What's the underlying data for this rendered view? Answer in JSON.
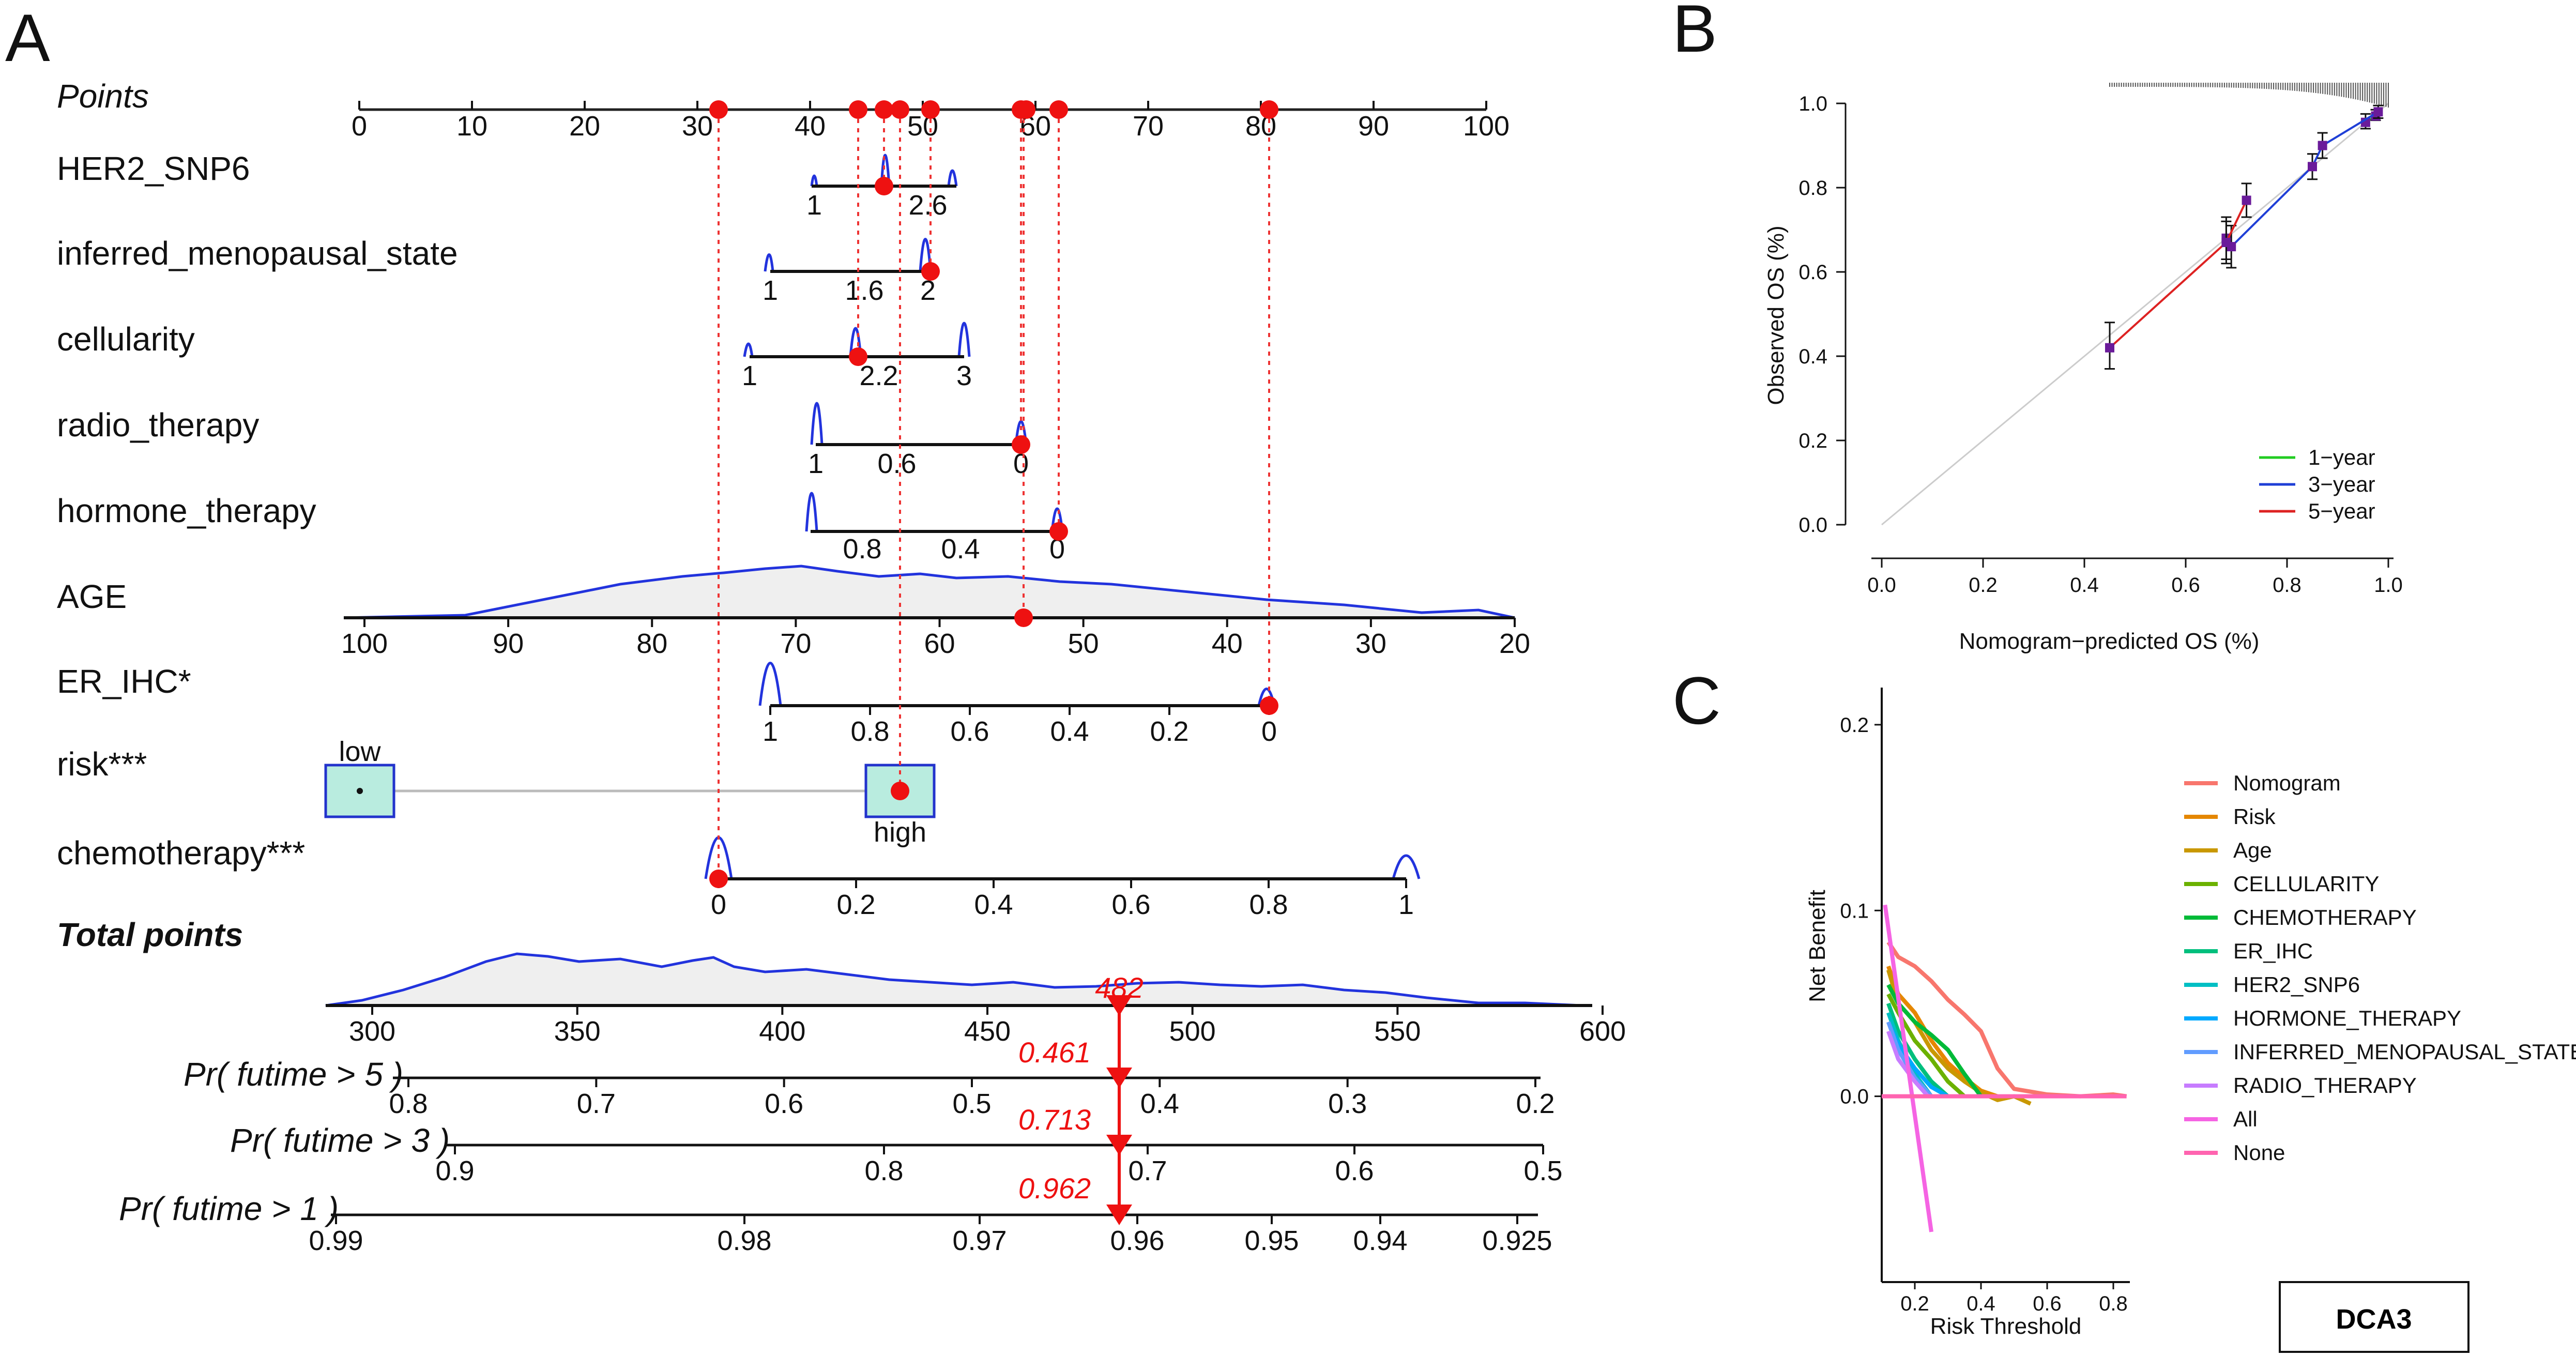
{
  "panels": {
    "a": "A",
    "b": "B",
    "c": "C"
  },
  "nomogram": {
    "points_label": "Points",
    "points_ticks": [
      "0",
      "10",
      "20",
      "30",
      "40",
      "50",
      "60",
      "70",
      "80",
      "90",
      "100"
    ],
    "variables": [
      {
        "label": "HER2_SNP6",
        "ticks": [
          "1",
          "2.6"
        ]
      },
      {
        "label": "inferred_menopausal_state",
        "ticks": [
          "1",
          "1.6",
          "2"
        ]
      },
      {
        "label": "cellularity",
        "ticks": [
          "1",
          "2.2",
          "3"
        ]
      },
      {
        "label": "radio_therapy",
        "ticks": [
          "1",
          "0.6",
          "0"
        ]
      },
      {
        "label": "hormone_therapy",
        "ticks": [
          "0.8",
          "0.4",
          "0"
        ]
      },
      {
        "label": "AGE",
        "ticks": [
          "100",
          "90",
          "80",
          "70",
          "60",
          "50",
          "40",
          "30",
          "20"
        ]
      },
      {
        "label": "ER_IHC*",
        "ticks": [
          "1",
          "0.8",
          "0.6",
          "0.4",
          "0.2",
          "0"
        ]
      },
      {
        "label": "risk***",
        "low": "low",
        "high": "high"
      },
      {
        "label": "chemotherapy***",
        "ticks": [
          "0",
          "0.2",
          "0.4",
          "0.6",
          "0.8",
          "1"
        ]
      }
    ],
    "total_label": "Total points",
    "total_ticks": [
      "300",
      "350",
      "400",
      "450",
      "500",
      "550",
      "600"
    ],
    "total_value": "482",
    "probabilities": [
      {
        "label": "Pr( futime > 5 )",
        "ticks": [
          "0.8",
          "0.7",
          "0.6",
          "0.5",
          "0.4",
          "0.3",
          "0.2"
        ],
        "value": "0.461"
      },
      {
        "label": "Pr( futime > 3 )",
        "ticks": [
          "0.9",
          "0.8",
          "0.7",
          "0.6",
          "0.5"
        ],
        "value": "0.713"
      },
      {
        "label": "Pr( futime > 1 )",
        "ticks": [
          "0.99",
          "0.98",
          "0.97",
          "0.96",
          "0.95",
          "0.94",
          "0.925"
        ],
        "value": "0.962"
      }
    ]
  },
  "chart_data": [
    {
      "type": "line",
      "panel": "B",
      "title": "",
      "xlabel": "Nomogram−predicted OS (%)",
      "ylabel": "Observed OS (%)",
      "xlim": [
        0,
        1
      ],
      "ylim": [
        0,
        1
      ],
      "x_ticks": [
        "0.0",
        "0.2",
        "0.4",
        "0.6",
        "0.8",
        "1.0"
      ],
      "y_ticks": [
        "0.0",
        "0.2",
        "0.4",
        "0.6",
        "0.8",
        "1.0"
      ],
      "legend_position": "bottom-right",
      "series": [
        {
          "name": "1−year",
          "color": "#22cc22",
          "points": [
            {
              "x": 0.955,
              "y": 0.955,
              "lo": 0.94,
              "hi": 0.975
            },
            {
              "x": 0.975,
              "y": 0.97,
              "lo": 0.96,
              "hi": 0.985
            }
          ]
        },
        {
          "name": "3−year",
          "color": "#1f3fd6",
          "points": [
            {
              "x": 0.68,
              "y": 0.68,
              "lo": 0.63,
              "hi": 0.73
            },
            {
              "x": 0.69,
              "y": 0.66,
              "lo": 0.61,
              "hi": 0.71
            },
            {
              "x": 0.85,
              "y": 0.85,
              "lo": 0.82,
              "hi": 0.88
            },
            {
              "x": 0.87,
              "y": 0.9,
              "lo": 0.87,
              "hi": 0.93
            },
            {
              "x": 0.98,
              "y": 0.98,
              "lo": 0.965,
              "hi": 0.995
            }
          ]
        },
        {
          "name": "5−year",
          "color": "#dd2222",
          "points": [
            {
              "x": 0.45,
              "y": 0.42,
              "lo": 0.37,
              "hi": 0.48
            },
            {
              "x": 0.68,
              "y": 0.67,
              "lo": 0.62,
              "hi": 0.72
            },
            {
              "x": 0.72,
              "y": 0.77,
              "lo": 0.73,
              "hi": 0.81
            }
          ]
        }
      ]
    },
    {
      "type": "line",
      "panel": "C",
      "title": "DCA3",
      "xlabel": "Risk Threshold",
      "ylabel": "Net Benefit",
      "xlim": [
        0.1,
        0.85
      ],
      "ylim": [
        -0.1,
        0.22
      ],
      "x_ticks": [
        "0.2",
        "0.4",
        "0.6",
        "0.8"
      ],
      "y_ticks": [
        "0.0",
        "0.1",
        "0.2"
      ],
      "legend_position": "right",
      "series": [
        {
          "name": "Nomogram",
          "color": "#f8766d",
          "x": [
            0.12,
            0.15,
            0.2,
            0.25,
            0.3,
            0.35,
            0.4,
            0.45,
            0.5,
            0.6,
            0.7,
            0.8,
            0.84
          ],
          "y": [
            0.083,
            0.075,
            0.07,
            0.062,
            0.052,
            0.044,
            0.035,
            0.015,
            0.004,
            0.001,
            0.0,
            0.001,
            0.0
          ]
        },
        {
          "name": "Risk",
          "color": "#e58700",
          "x": [
            0.12,
            0.15,
            0.2,
            0.25,
            0.3,
            0.35,
            0.4,
            0.45
          ],
          "y": [
            0.07,
            0.055,
            0.045,
            0.03,
            0.018,
            0.01,
            0.003,
            0.0
          ]
        },
        {
          "name": "Age",
          "color": "#c99800",
          "x": [
            0.12,
            0.15,
            0.2,
            0.25,
            0.3,
            0.35,
            0.4,
            0.45,
            0.5,
            0.55
          ],
          "y": [
            0.068,
            0.05,
            0.04,
            0.025,
            0.015,
            0.008,
            0.002,
            -0.002,
            0.0,
            -0.004
          ]
        },
        {
          "name": "CELLULARITY",
          "color": "#6bb100",
          "x": [
            0.12,
            0.15,
            0.2,
            0.25,
            0.3,
            0.35
          ],
          "y": [
            0.055,
            0.045,
            0.03,
            0.02,
            0.008,
            0.0
          ]
        },
        {
          "name": "CHEMOTHERAPY",
          "color": "#00ba38",
          "x": [
            0.12,
            0.15,
            0.2,
            0.25,
            0.3,
            0.35,
            0.4
          ],
          "y": [
            0.06,
            0.05,
            0.04,
            0.033,
            0.025,
            0.012,
            0.0
          ]
        },
        {
          "name": "ER_IHC",
          "color": "#00bf7d",
          "x": [
            0.12,
            0.15,
            0.2,
            0.25,
            0.3
          ],
          "y": [
            0.05,
            0.035,
            0.02,
            0.008,
            0.0
          ]
        },
        {
          "name": "HER2_SNP6",
          "color": "#00bfc4",
          "x": [
            0.12,
            0.15,
            0.2,
            0.25
          ],
          "y": [
            0.045,
            0.03,
            0.012,
            0.0
          ]
        },
        {
          "name": "HORMONE_THERAPY",
          "color": "#00a9ff",
          "x": [
            0.12,
            0.15,
            0.2,
            0.25,
            0.3
          ],
          "y": [
            0.04,
            0.028,
            0.015,
            0.005,
            0.0
          ]
        },
        {
          "name": "INFERRED_MENOPAUSAL_STATE",
          "color": "#619cff",
          "x": [
            0.12,
            0.15,
            0.2,
            0.25
          ],
          "y": [
            0.04,
            0.025,
            0.01,
            0.0
          ]
        },
        {
          "name": "RADIO_THERAPY",
          "color": "#c77cff",
          "x": [
            0.12,
            0.15,
            0.2,
            0.24
          ],
          "y": [
            0.035,
            0.02,
            0.008,
            0.0
          ]
        },
        {
          "name": "All",
          "color": "#f564e3",
          "x": [
            0.11,
            0.25
          ],
          "y": [
            0.103,
            -0.073
          ]
        },
        {
          "name": "None",
          "color": "#ff64b0",
          "x": [
            0.1,
            0.84
          ],
          "y": [
            0.0,
            0.0
          ]
        }
      ]
    }
  ]
}
